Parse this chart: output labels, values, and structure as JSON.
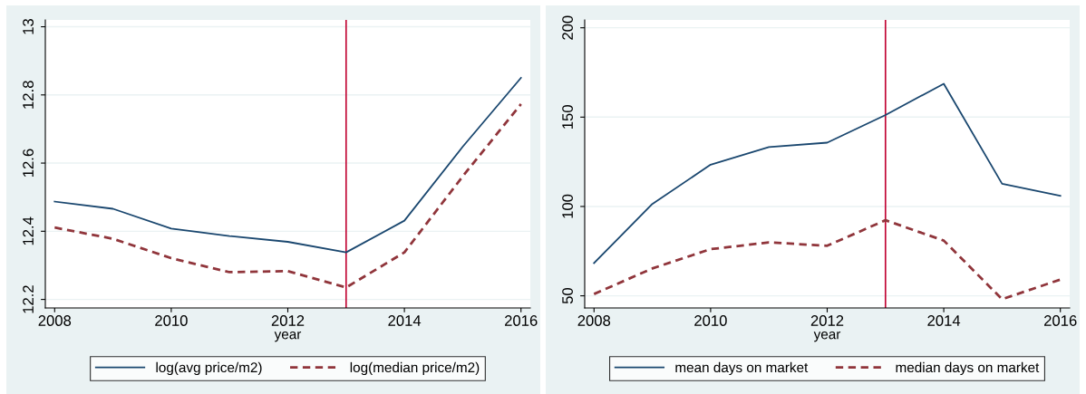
{
  "chart_data": [
    {
      "type": "line",
      "xlabel": "year",
      "x": [
        2008,
        2009,
        2010,
        2011,
        2012,
        2013,
        2014,
        2015,
        2016
      ],
      "series": [
        {
          "name": "log(avg price/m2)",
          "color": "#1a476f",
          "line_style": "solid",
          "values": [
            12.487,
            12.466,
            12.408,
            12.386,
            12.369,
            12.338,
            12.431,
            12.648,
            12.85
          ]
        },
        {
          "name": "log(median price/m2)",
          "color": "#90353b",
          "line_style": "dashed",
          "values": [
            12.411,
            12.378,
            12.321,
            12.28,
            12.283,
            12.235,
            12.338,
            12.561,
            12.773
          ]
        }
      ],
      "xlim": [
        2007.84,
        2016.16
      ],
      "xticks": [
        2008,
        2010,
        2012,
        2014,
        2016
      ],
      "ylim": [
        12.175,
        13.02
      ],
      "yticks": [
        12.2,
        12.4,
        12.6,
        12.8,
        13
      ],
      "ref_lines": [
        {
          "axis": "x",
          "value": 2013,
          "color": "#c10534"
        }
      ],
      "grid": "y",
      "legend": "bottom",
      "marker": "none"
    },
    {
      "type": "line",
      "xlabel": "year",
      "x": [
        2008,
        2009,
        2010,
        2011,
        2012,
        2013,
        2014,
        2015,
        2016
      ],
      "series": [
        {
          "name": "mean days on market",
          "color": "#1a476f",
          "line_style": "solid",
          "values": [
            68.3,
            101.4,
            123.4,
            133.2,
            135.7,
            151.2,
            168.7,
            112.7,
            106
          ]
        },
        {
          "name": "median days on market",
          "color": "#90353b",
          "line_style": "dashed",
          "values": [
            51,
            65.3,
            76.1,
            79.9,
            78,
            92.3,
            80.9,
            48.1,
            59.1
          ]
        }
      ],
      "xlim": [
        2007.84,
        2016.16
      ],
      "xticks": [
        2008,
        2010,
        2012,
        2014,
        2016
      ],
      "ylim": [
        43.2,
        204.4
      ],
      "yticks": [
        50,
        100,
        150,
        200
      ],
      "ref_lines": [
        {
          "axis": "x",
          "value": 2013,
          "color": "#c10534"
        }
      ],
      "grid": "y",
      "legend": "bottom",
      "marker": "none"
    }
  ]
}
